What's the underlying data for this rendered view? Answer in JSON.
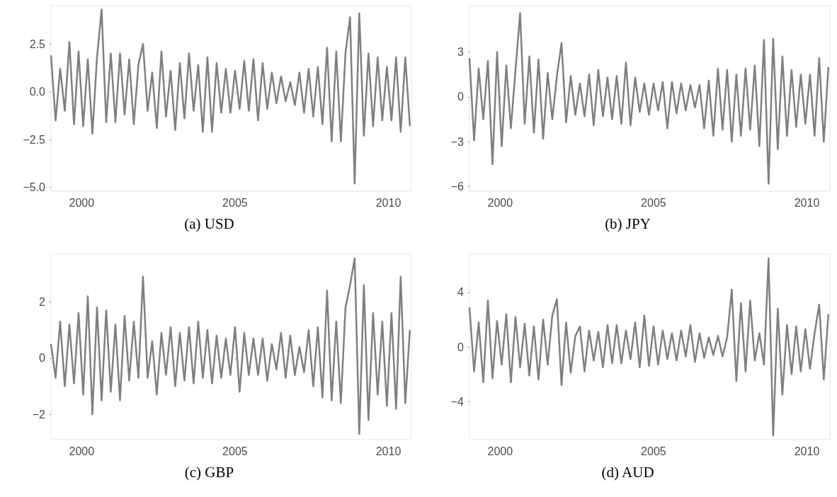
{
  "chart_data": [
    {
      "type": "line",
      "title": "(a) USD",
      "x": [
        1999,
        1999.15,
        1999.3,
        1999.45,
        1999.6,
        1999.75,
        1999.9,
        2000.05,
        2000.2,
        2000.35,
        2000.5,
        2000.65,
        2000.8,
        2000.95,
        2001.1,
        2001.25,
        2001.4,
        2001.55,
        2001.7,
        2001.85,
        2002,
        2002.15,
        2002.3,
        2002.45,
        2002.6,
        2002.75,
        2002.9,
        2003.05,
        2003.2,
        2003.35,
        2003.5,
        2003.65,
        2003.8,
        2003.95,
        2004.1,
        2004.25,
        2004.4,
        2004.55,
        2004.7,
        2004.85,
        2005,
        2005.15,
        2005.3,
        2005.45,
        2005.6,
        2005.75,
        2005.9,
        2006.05,
        2006.2,
        2006.35,
        2006.5,
        2006.65,
        2006.8,
        2006.95,
        2007.1,
        2007.25,
        2007.4,
        2007.55,
        2007.7,
        2007.85,
        2008,
        2008.15,
        2008.3,
        2008.45,
        2008.6,
        2008.75,
        2008.9,
        2009.05,
        2009.2,
        2009.35,
        2009.5,
        2009.65,
        2009.8,
        2009.95,
        2010.1,
        2010.25,
        2010.4,
        2010.55,
        2010.7
      ],
      "xlim": [
        1999,
        2010.75
      ],
      "xticks": [
        2000,
        2005,
        2010
      ],
      "ylim": [
        -5.2,
        4.5
      ],
      "yticks": [
        {
          "value": 2.5,
          "label": "2.5"
        },
        {
          "value": 0,
          "label": "0.0"
        },
        {
          "value": -2.5,
          "label": "−2.5"
        },
        {
          "value": -5,
          "label": "−5.0"
        }
      ],
      "series": [
        {
          "color": "#808080",
          "values": [
            1.9,
            -1.5,
            1.2,
            -1.0,
            2.6,
            -1.7,
            2.1,
            -1.8,
            1.7,
            -2.2,
            1.8,
            4.3,
            -1.6,
            2.0,
            -1.6,
            2.0,
            -1.2,
            1.7,
            -1.7,
            1.4,
            2.5,
            -1.0,
            1.0,
            -1.9,
            2.1,
            -1.3,
            1.1,
            -2.0,
            1.5,
            -1.4,
            2.0,
            -1.0,
            1.4,
            -2.1,
            1.8,
            -2.1,
            1.5,
            -1.1,
            1.2,
            -1.1,
            1.1,
            -0.9,
            1.6,
            -1.0,
            1.7,
            -1.5,
            1.5,
            -0.9,
            1.0,
            -0.6,
            0.8,
            -0.5,
            0.5,
            -0.7,
            1.0,
            -1.1,
            1.2,
            -1.3,
            1.3,
            -1.7,
            2.3,
            -2.6,
            2.1,
            -2.6,
            2.0,
            3.9,
            -4.8,
            4.1,
            -2.3,
            2.0,
            -1.8,
            1.8,
            -1.5,
            1.3,
            -1.5,
            1.8,
            -2.1,
            1.8,
            -1.8
          ]
        }
      ]
    },
    {
      "type": "line",
      "title": "(b) JPY",
      "x": [
        1999,
        1999.15,
        1999.3,
        1999.45,
        1999.6,
        1999.75,
        1999.9,
        2000.05,
        2000.2,
        2000.35,
        2000.5,
        2000.65,
        2000.8,
        2000.95,
        2001.1,
        2001.25,
        2001.4,
        2001.55,
        2001.7,
        2001.85,
        2002,
        2002.15,
        2002.3,
        2002.45,
        2002.6,
        2002.75,
        2002.9,
        2003.05,
        2003.2,
        2003.35,
        2003.5,
        2003.65,
        2003.8,
        2003.95,
        2004.1,
        2004.25,
        2004.4,
        2004.55,
        2004.7,
        2004.85,
        2005,
        2005.15,
        2005.3,
        2005.45,
        2005.6,
        2005.75,
        2005.9,
        2006.05,
        2006.2,
        2006.35,
        2006.5,
        2006.65,
        2006.8,
        2006.95,
        2007.1,
        2007.25,
        2007.4,
        2007.55,
        2007.7,
        2007.85,
        2008,
        2008.15,
        2008.3,
        2008.45,
        2008.6,
        2008.75,
        2008.9,
        2009.05,
        2009.2,
        2009.35,
        2009.5,
        2009.65,
        2009.8,
        2009.95,
        2010.1,
        2010.25,
        2010.4,
        2010.55,
        2010.7
      ],
      "xlim": [
        1999,
        2010.75
      ],
      "xticks": [
        2000,
        2005,
        2010
      ],
      "ylim": [
        -6.3,
        6.1
      ],
      "yticks": [
        3,
        0,
        {
          "value": -3,
          "label": "−3"
        },
        {
          "value": -6,
          "label": "−6"
        }
      ],
      "series": [
        {
          "color": "#808080",
          "values": [
            2.6,
            -2.9,
            1.9,
            -1.5,
            2.4,
            -4.5,
            3.0,
            -3.3,
            2.1,
            -2.1,
            1.8,
            5.6,
            -1.8,
            2.7,
            -2.4,
            2.5,
            -2.8,
            1.6,
            -1.5,
            1.4,
            3.6,
            -1.7,
            1.4,
            -1.2,
            0.9,
            -1.3,
            1.5,
            -1.9,
            1.8,
            -1.3,
            1.3,
            -1.5,
            1.4,
            -1.8,
            2.3,
            -1.9,
            1.3,
            -1.0,
            0.9,
            -1.2,
            0.9,
            -0.9,
            1.0,
            -2.1,
            1.0,
            -1.1,
            0.9,
            -0.9,
            0.8,
            -0.7,
            0.8,
            -2.1,
            1.1,
            -2.6,
            1.9,
            -2.2,
            1.8,
            -3.0,
            1.5,
            -2.6,
            1.9,
            -2.2,
            2.1,
            -3.3,
            3.8,
            -5.8,
            3.9,
            -3.5,
            2.7,
            -2.6,
            1.8,
            -2.0,
            1.5,
            -1.8,
            1.5,
            -2.6,
            2.6,
            -3.0,
            2.0
          ]
        }
      ]
    },
    {
      "type": "line",
      "title": "(c) GBP",
      "x": [
        1999,
        1999.15,
        1999.3,
        1999.45,
        1999.6,
        1999.75,
        1999.9,
        2000.05,
        2000.2,
        2000.35,
        2000.5,
        2000.65,
        2000.8,
        2000.95,
        2001.1,
        2001.25,
        2001.4,
        2001.55,
        2001.7,
        2001.85,
        2002,
        2002.15,
        2002.3,
        2002.45,
        2002.6,
        2002.75,
        2002.9,
        2003.05,
        2003.2,
        2003.35,
        2003.5,
        2003.65,
        2003.8,
        2003.95,
        2004.1,
        2004.25,
        2004.4,
        2004.55,
        2004.7,
        2004.85,
        2005,
        2005.15,
        2005.3,
        2005.45,
        2005.6,
        2005.75,
        2005.9,
        2006.05,
        2006.2,
        2006.35,
        2006.5,
        2006.65,
        2006.8,
        2006.95,
        2007.1,
        2007.25,
        2007.4,
        2007.55,
        2007.7,
        2007.85,
        2008,
        2008.15,
        2008.3,
        2008.45,
        2008.6,
        2008.75,
        2008.9,
        2009.05,
        2009.2,
        2009.35,
        2009.5,
        2009.65,
        2009.8,
        2009.95,
        2010.1,
        2010.25,
        2010.4,
        2010.55,
        2010.7
      ],
      "xlim": [
        1999,
        2010.75
      ],
      "xticks": [
        2000,
        2005,
        2010
      ],
      "ylim": [
        -2.9,
        3.7
      ],
      "yticks": [
        2,
        0,
        {
          "value": -2,
          "label": "−2"
        }
      ],
      "series": [
        {
          "color": "#808080",
          "values": [
            0.5,
            -0.7,
            1.3,
            -1.0,
            1.2,
            -0.9,
            1.6,
            -1.3,
            2.2,
            -2.0,
            1.8,
            -1.5,
            1.7,
            -1.2,
            1.2,
            -1.5,
            1.5,
            -0.8,
            1.3,
            -0.7,
            2.9,
            -0.7,
            0.6,
            -1.3,
            0.9,
            -0.6,
            1.1,
            -1.0,
            0.9,
            -0.8,
            1.1,
            -0.9,
            1.3,
            -0.7,
            1.0,
            -0.9,
            0.8,
            -0.7,
            0.7,
            -0.6,
            1.1,
            -1.2,
            0.9,
            -0.6,
            0.7,
            -0.6,
            0.7,
            -0.8,
            0.5,
            -0.4,
            0.9,
            -0.7,
            0.8,
            -0.6,
            0.4,
            -0.5,
            1.0,
            -1.0,
            1.1,
            -1.4,
            2.4,
            -1.5,
            1.3,
            -1.6,
            1.8,
            2.6,
            3.55,
            -2.7,
            2.6,
            -2.2,
            1.6,
            -1.3,
            1.3,
            -1.7,
            1.6,
            -1.8,
            2.9,
            -1.6,
            1.0
          ]
        }
      ]
    },
    {
      "type": "line",
      "title": "(d) AUD",
      "x": [
        1999,
        1999.15,
        1999.3,
        1999.45,
        1999.6,
        1999.75,
        1999.9,
        2000.05,
        2000.2,
        2000.35,
        2000.5,
        2000.65,
        2000.8,
        2000.95,
        2001.1,
        2001.25,
        2001.4,
        2001.55,
        2001.7,
        2001.85,
        2002,
        2002.15,
        2002.3,
        2002.45,
        2002.6,
        2002.75,
        2002.9,
        2003.05,
        2003.2,
        2003.35,
        2003.5,
        2003.65,
        2003.8,
        2003.95,
        2004.1,
        2004.25,
        2004.4,
        2004.55,
        2004.7,
        2004.85,
        2005,
        2005.15,
        2005.3,
        2005.45,
        2005.6,
        2005.75,
        2005.9,
        2006.05,
        2006.2,
        2006.35,
        2006.5,
        2006.65,
        2006.8,
        2006.95,
        2007.1,
        2007.25,
        2007.4,
        2007.55,
        2007.7,
        2007.85,
        2008,
        2008.15,
        2008.3,
        2008.45,
        2008.6,
        2008.75,
        2008.9,
        2009.05,
        2009.2,
        2009.35,
        2009.5,
        2009.65,
        2009.8,
        2009.95,
        2010.1,
        2010.25,
        2010.4,
        2010.55,
        2010.7
      ],
      "xlim": [
        1999,
        2010.75
      ],
      "xticks": [
        2000,
        2005,
        2010
      ],
      "ylim": [
        -6.8,
        6.8
      ],
      "yticks": [
        4,
        0,
        {
          "value": -4,
          "label": "−4"
        }
      ],
      "series": [
        {
          "color": "#808080",
          "values": [
            2.9,
            -1.8,
            1.8,
            -2.6,
            3.4,
            -2.3,
            1.9,
            -1.3,
            2.4,
            -2.6,
            2.2,
            -1.5,
            1.7,
            -2.1,
            1.5,
            -2.4,
            2.0,
            -1.3,
            2.3,
            3.5,
            -2.8,
            1.8,
            -1.9,
            0.8,
            1.5,
            -1.8,
            1.2,
            -1.0,
            1.1,
            -1.5,
            1.6,
            -1.2,
            1.6,
            -1.2,
            1.2,
            -0.9,
            1.8,
            -1.5,
            2.3,
            -1.4,
            1.5,
            -1.3,
            1.2,
            -0.9,
            1.0,
            -1.0,
            1.2,
            -0.7,
            1.6,
            -1.1,
            1.0,
            -0.8,
            0.7,
            -0.6,
            0.8,
            -0.7,
            0.7,
            4.2,
            -2.5,
            3.2,
            -1.8,
            3.4,
            -1.0,
            1.0,
            -1.3,
            6.5,
            -6.5,
            2.8,
            -3.5,
            1.6,
            -2.0,
            1.5,
            -1.8,
            1.3,
            -1.6,
            1.0,
            3.1,
            -2.4,
            2.4
          ]
        }
      ]
    }
  ]
}
